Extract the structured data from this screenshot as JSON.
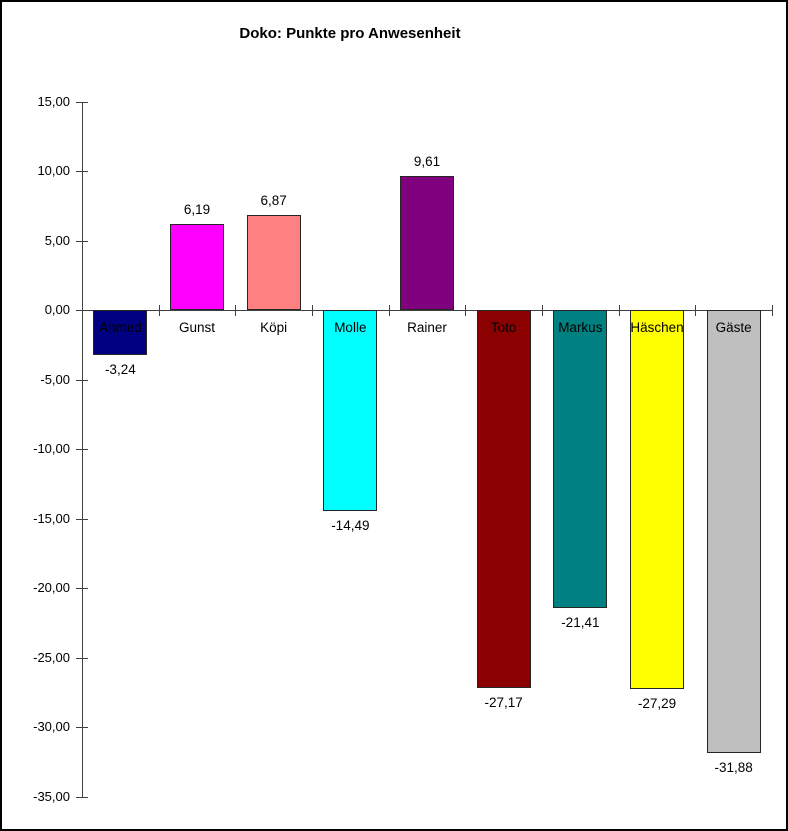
{
  "chart_data": {
    "type": "bar",
    "title": "Doko: Punkte pro Anwesenheit",
    "categories": [
      "Ahmed",
      "Gunst",
      "Köpi",
      "Molle",
      "Rainer",
      "Toto",
      "Markus",
      "Häschen",
      "Gäste"
    ],
    "values": [
      -3.24,
      6.19,
      6.87,
      -14.49,
      9.61,
      -27.17,
      -21.41,
      -27.29,
      -31.88
    ],
    "value_labels": [
      "-3,24",
      "6,19",
      "6,87",
      "-14,49",
      "9,61",
      "-27,17",
      "-21,41",
      "-27,29",
      "-31,88"
    ],
    "bar_colors": [
      "#000080",
      "#FF00FF",
      "#FF8080",
      "#00FFFF",
      "#800080",
      "#8B0000",
      "#008080",
      "#FFFF00",
      "#BFBFBF"
    ],
    "bar_border_color": "#262626",
    "axis_color": "#404040",
    "text_color": "#000000",
    "xlabel": "",
    "ylabel": "",
    "ylim": [
      -35,
      15
    ],
    "ytick_step": 5,
    "ytick_labels": [
      "15,00",
      "10,00",
      "5,00",
      "0,00",
      "-5,00",
      "-10,00",
      "-15,00",
      "-20,00",
      "-25,00",
      "-30,00",
      "-35,00"
    ],
    "ytick_values": [
      15,
      10,
      5,
      0,
      -5,
      -10,
      -15,
      -20,
      -25,
      -30,
      -35
    ],
    "grid": false,
    "legend": "none"
  }
}
